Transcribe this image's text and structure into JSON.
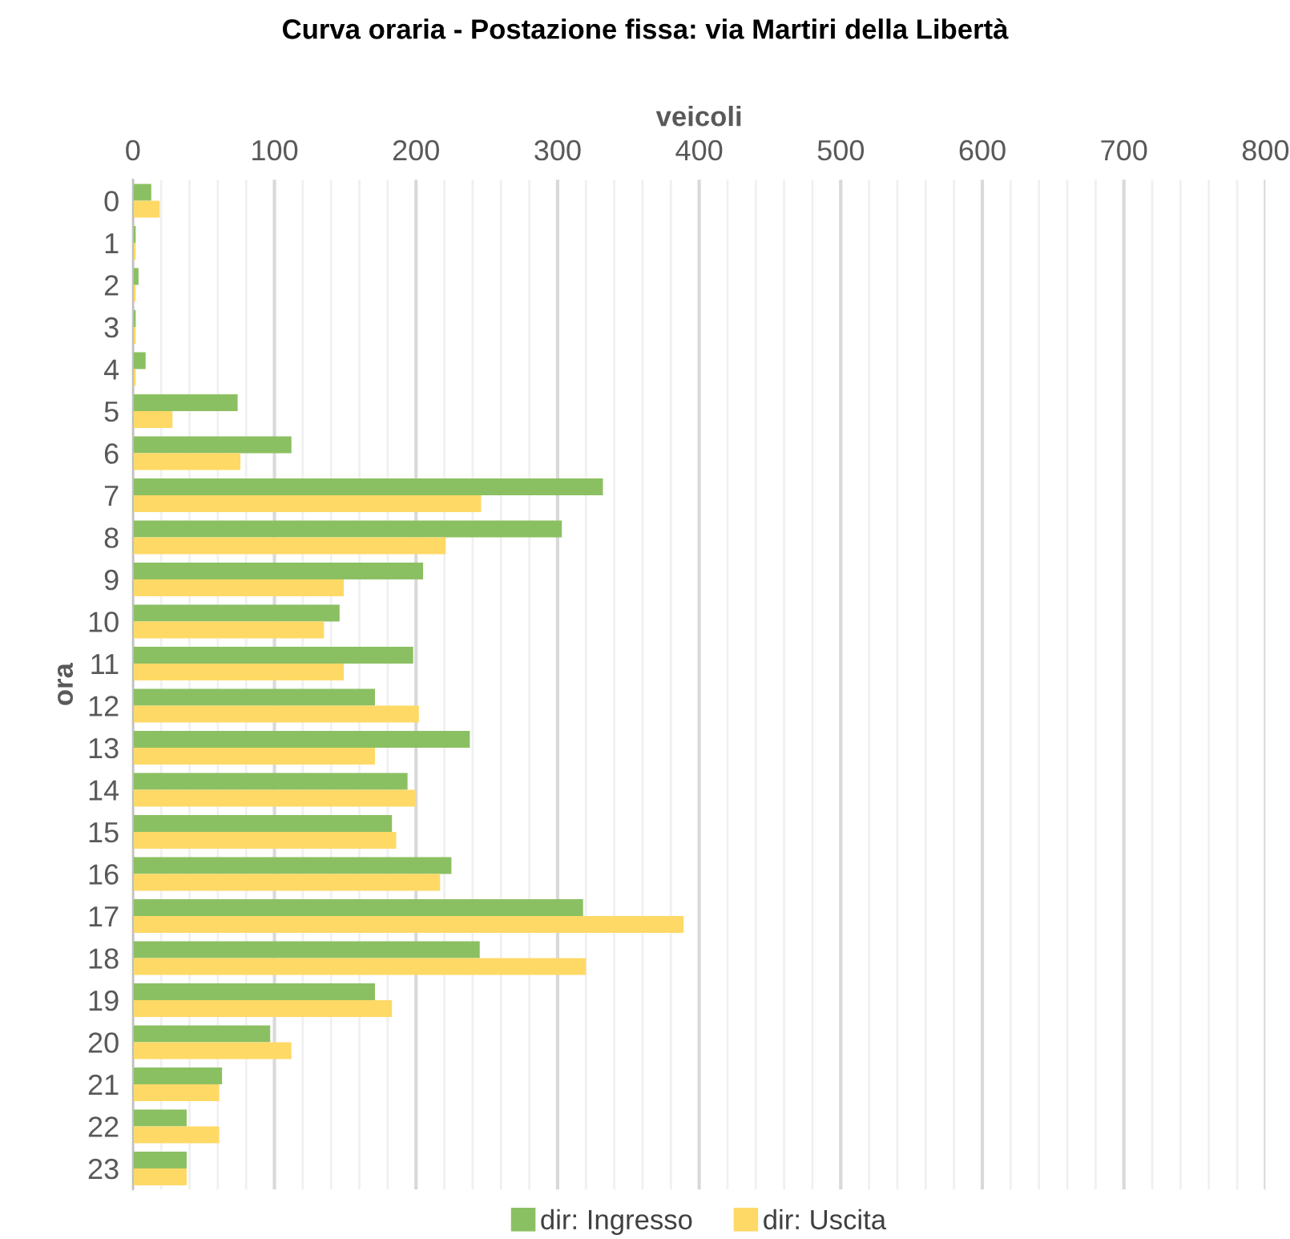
{
  "chart_data": {
    "type": "bar",
    "orientation": "horizontal",
    "title": "Curva oraria - Postazione fissa: via Martiri della Libertà",
    "xlabel": "veicoli",
    "ylabel": "ora",
    "categories": [
      "0",
      "1",
      "2",
      "3",
      "4",
      "5",
      "6",
      "7",
      "8",
      "9",
      "10",
      "11",
      "12",
      "13",
      "14",
      "15",
      "16",
      "17",
      "18",
      "19",
      "20",
      "21",
      "22",
      "23"
    ],
    "series": [
      {
        "name": "dir: Ingresso",
        "color": "#8bc062",
        "values": [
          13,
          2,
          4,
          2,
          9,
          74,
          112,
          332,
          303,
          205,
          146,
          198,
          171,
          238,
          194,
          183,
          225,
          318,
          245,
          171,
          97,
          63,
          38,
          38
        ]
      },
      {
        "name": "dir: Uscita",
        "color": "#ffd966",
        "values": [
          19,
          2,
          2,
          2,
          2,
          28,
          76,
          246,
          221,
          149,
          135,
          149,
          202,
          171,
          200,
          186,
          217,
          389,
          320,
          183,
          112,
          61,
          61,
          38
        ]
      }
    ],
    "xlim": [
      0,
      800
    ],
    "xticks": [
      0,
      {
        "value": 20,
        "label": null
      },
      {
        "value": 40,
        "label": null
      },
      {
        "value": 60,
        "label": null
      },
      {
        "value": 80,
        "label": null
      },
      100,
      {
        "value": 120,
        "label": null
      },
      {
        "value": 140,
        "label": null
      },
      {
        "value": 160,
        "label": null
      },
      {
        "value": 180,
        "label": null
      },
      200,
      {
        "value": 220,
        "label": null
      },
      {
        "value": 240,
        "label": null
      },
      {
        "value": 260,
        "label": null
      },
      {
        "value": 280,
        "label": null
      },
      300,
      {
        "value": 320,
        "label": null
      },
      {
        "value": 340,
        "label": null
      },
      {
        "value": 360,
        "label": null
      },
      {
        "value": 380,
        "label": null
      },
      400,
      {
        "value": 420,
        "label": null
      },
      {
        "value": 440,
        "label": null
      },
      {
        "value": 460,
        "label": null
      },
      {
        "value": 480,
        "label": null
      },
      500,
      {
        "value": 520,
        "label": null
      },
      {
        "value": 540,
        "label": null
      },
      {
        "value": 560,
        "label": null
      },
      {
        "value": 580,
        "label": null
      },
      600,
      {
        "value": 620,
        "label": null
      },
      {
        "value": 640,
        "label": null
      },
      {
        "value": 660,
        "label": null
      },
      {
        "value": 680,
        "label": null
      },
      700,
      {
        "value": 720,
        "label": null
      },
      {
        "value": 740,
        "label": null
      },
      {
        "value": 760,
        "label": null
      },
      {
        "value": 780,
        "label": null
      },
      800
    ],
    "grid": "x",
    "legend": "bottom"
  }
}
